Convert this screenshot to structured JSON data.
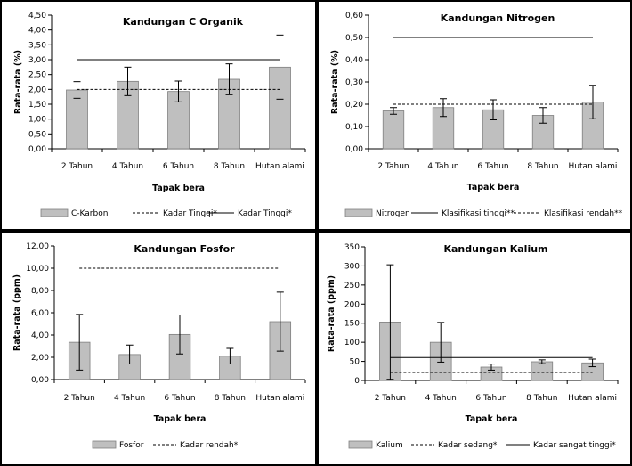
{
  "chart_data": [
    {
      "type": "bar",
      "title": "Kandungan C Organik",
      "xlabel": "Tapak bera",
      "ylabel": "Rata-rata (%)",
      "categories": [
        "2 Tahun",
        "4 Tahun",
        "6 Tahun",
        "8 Tahun",
        "Hutan alami"
      ],
      "ylim": [
        0,
        4.5
      ],
      "yticks": [
        "0,00",
        "0,50",
        "1,00",
        "1,50",
        "2,00",
        "2,50",
        "3,00",
        "3,50",
        "4,00",
        "4,50"
      ],
      "series": [
        {
          "name": "C-Karbon",
          "kind": "bar",
          "values": [
            1.98,
            2.27,
            1.93,
            2.34,
            2.75
          ],
          "errors": [
            0.28,
            0.48,
            0.35,
            0.52,
            1.08
          ],
          "color": "#bfbfbf"
        },
        {
          "name": "Kadar Tinggi*",
          "kind": "line",
          "dash": "dashed",
          "value": 2.0,
          "color": "#000000"
        },
        {
          "name": "Kadar Tinggi*",
          "kind": "line",
          "dash": "solid",
          "value": 3.0,
          "color": "#000000"
        }
      ],
      "legend_position": "bottom"
    },
    {
      "type": "bar",
      "title": "Kandungan Nitrogen",
      "xlabel": "Tapak bera",
      "ylabel": "Rata-rata (%)",
      "categories": [
        "2 Tahun",
        "4 Tahun",
        "6 Tahun",
        "8 Tahun",
        "Hutan alami"
      ],
      "ylim": [
        0,
        0.6
      ],
      "yticks": [
        "0,00",
        "0,10",
        "0,20",
        "0,30",
        "0,40",
        "0,50",
        "0,60"
      ],
      "series": [
        {
          "name": "Nitrogen",
          "kind": "bar",
          "values": [
            0.17,
            0.185,
            0.175,
            0.15,
            0.21
          ],
          "errors": [
            0.015,
            0.04,
            0.045,
            0.035,
            0.075
          ],
          "color": "#bfbfbf"
        },
        {
          "name": "Klasifikasi tinggi**",
          "kind": "line",
          "dash": "solid",
          "value": 0.5,
          "color": "#000000"
        },
        {
          "name": "Klasifikasi rendah**",
          "kind": "line",
          "dash": "dashed",
          "value": 0.2,
          "color": "#000000"
        }
      ],
      "legend_position": "bottom"
    },
    {
      "type": "bar",
      "title": "Kandungan Fosfor",
      "xlabel": "Tapak bera",
      "ylabel": "Rata-rata (ppm)",
      "categories": [
        "2 Tahun",
        "4 Tahun",
        "6 Tahun",
        "8 Tahun",
        "Hutan alami"
      ],
      "ylim": [
        0,
        12
      ],
      "yticks": [
        "0,00",
        "2,00",
        "4,00",
        "6,00",
        "8,00",
        "10,00",
        "12,00"
      ],
      "series": [
        {
          "name": "Fosfor",
          "kind": "bar",
          "values": [
            3.35,
            2.25,
            4.05,
            2.1,
            5.2
          ],
          "errors": [
            2.5,
            0.85,
            1.75,
            0.7,
            2.65
          ],
          "color": "#bfbfbf"
        },
        {
          "name": "Kadar rendah*",
          "kind": "line",
          "dash": "dashed",
          "value": 10.0,
          "color": "#000000"
        }
      ],
      "legend_position": "bottom"
    },
    {
      "type": "bar",
      "title": "Kandungan Kalium",
      "xlabel": "Tapak bera",
      "ylabel": "Rata-rata (ppm)",
      "categories": [
        "2 Tahun",
        "4 Tahun",
        "6 Tahun",
        "8 Tahun",
        "Hutan alami"
      ],
      "ylim": [
        0,
        350
      ],
      "yticks": [
        "0",
        "50",
        "100",
        "150",
        "200",
        "250",
        "300",
        "350"
      ],
      "series": [
        {
          "name": "Kalium",
          "kind": "bar",
          "values": [
            153,
            100,
            35,
            49,
            46
          ],
          "errors": [
            150,
            52,
            8,
            5,
            10
          ],
          "color": "#bfbfbf"
        },
        {
          "name": "Kadar sedang*",
          "kind": "line",
          "dash": "dashed",
          "value": 21,
          "color": "#000000"
        },
        {
          "name": "Kadar sangat tinggi*",
          "kind": "line",
          "dash": "solid",
          "value": 60,
          "color": "#000000"
        }
      ],
      "legend_position": "bottom"
    }
  ]
}
